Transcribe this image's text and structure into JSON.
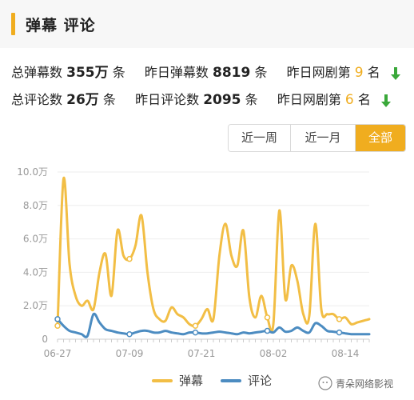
{
  "header": {
    "title": "弹幕 评论"
  },
  "stats": {
    "danmaku": {
      "label_total": "总弹幕数",
      "total": "355万",
      "unit": "条",
      "label_yesterday": "昨日弹幕数",
      "yesterday": "8819",
      "label_rank": "昨日网剧第",
      "rank": "9",
      "rank_unit": "名"
    },
    "comments": {
      "label_total": "总评论数",
      "total": "26万",
      "unit": "条",
      "label_yesterday": "昨日评论数",
      "yesterday": "2095",
      "label_rank": "昨日网剧第",
      "rank": "6",
      "rank_unit": "名"
    }
  },
  "range_buttons": [
    {
      "label": "近一周",
      "active": false
    },
    {
      "label": "近一月",
      "active": false
    },
    {
      "label": "全部",
      "active": true
    }
  ],
  "colors": {
    "accent": "#f0ad1f",
    "danmaku": "#f2be45",
    "comments": "#4c8cc1",
    "arrow": "#3aa83a"
  },
  "watermark": {
    "text": "青朵网络影视"
  },
  "chart_data": {
    "type": "line",
    "x": [
      "06-27",
      "06-28",
      "06-29",
      "06-30",
      "07-01",
      "07-02",
      "07-03",
      "07-04",
      "07-05",
      "07-06",
      "07-07",
      "07-08",
      "07-09",
      "07-10",
      "07-11",
      "07-12",
      "07-13",
      "07-14",
      "07-15",
      "07-16",
      "07-17",
      "07-18",
      "07-19",
      "07-20",
      "07-21",
      "07-22",
      "07-23",
      "07-24",
      "07-25",
      "07-26",
      "07-27",
      "07-28",
      "07-29",
      "07-30",
      "07-31",
      "08-01",
      "08-02",
      "08-03",
      "08-04",
      "08-05",
      "08-06",
      "08-07",
      "08-08",
      "08-09",
      "08-10",
      "08-11",
      "08-12",
      "08-13",
      "08-14",
      "08-15",
      "08-16",
      "08-17",
      "08-18"
    ],
    "x_ticks": [
      "06-27",
      "07-09",
      "07-21",
      "08-02",
      "08-14"
    ],
    "ylim": [
      0,
      10
    ],
    "y_ticks": [
      0,
      2,
      4,
      6,
      8,
      10
    ],
    "y_tick_labels": [
      "0",
      "2.0万",
      "4.0万",
      "6.0万",
      "8.0万",
      "10.0万"
    ],
    "series": [
      {
        "name": "弹幕",
        "values": [
          0.8,
          9.6,
          4.5,
          2.6,
          2.0,
          2.3,
          1.8,
          4.0,
          5.1,
          2.6,
          6.5,
          5.0,
          4.8,
          5.6,
          7.4,
          4.0,
          1.8,
          1.2,
          1.1,
          1.9,
          1.5,
          1.3,
          0.9,
          0.8,
          1.2,
          1.8,
          1.2,
          5.0,
          6.9,
          5.0,
          4.4,
          6.5,
          2.5,
          1.3,
          2.6,
          1.3,
          0.9,
          7.7,
          2.4,
          4.4,
          3.5,
          1.5,
          1.4,
          6.9,
          1.8,
          1.5,
          1.5,
          1.2,
          1.3,
          0.9,
          1.0,
          1.1,
          1.2
        ]
      },
      {
        "name": "评论",
        "values": [
          1.2,
          0.8,
          0.5,
          0.4,
          0.3,
          0.2,
          1.5,
          1.0,
          0.6,
          0.5,
          0.4,
          0.35,
          0.3,
          0.4,
          0.5,
          0.5,
          0.4,
          0.4,
          0.5,
          0.4,
          0.35,
          0.3,
          0.4,
          0.4,
          0.35,
          0.35,
          0.4,
          0.45,
          0.4,
          0.35,
          0.3,
          0.4,
          0.35,
          0.4,
          0.45,
          0.5,
          0.4,
          0.7,
          0.45,
          0.5,
          0.7,
          0.5,
          0.4,
          0.95,
          0.8,
          0.5,
          0.45,
          0.4,
          0.35,
          0.3,
          0.3,
          0.3,
          0.3
        ]
      }
    ],
    "markers": [
      {
        "series": 0,
        "index": 0
      },
      {
        "series": 0,
        "index": 12
      },
      {
        "series": 0,
        "index": 23
      },
      {
        "series": 0,
        "index": 35
      },
      {
        "series": 0,
        "index": 47
      },
      {
        "series": 1,
        "index": 0
      },
      {
        "series": 1,
        "index": 12
      },
      {
        "series": 1,
        "index": 23
      },
      {
        "series": 1,
        "index": 35
      },
      {
        "series": 1,
        "index": 47
      }
    ],
    "legend_position": "bottom",
    "grid": true
  }
}
